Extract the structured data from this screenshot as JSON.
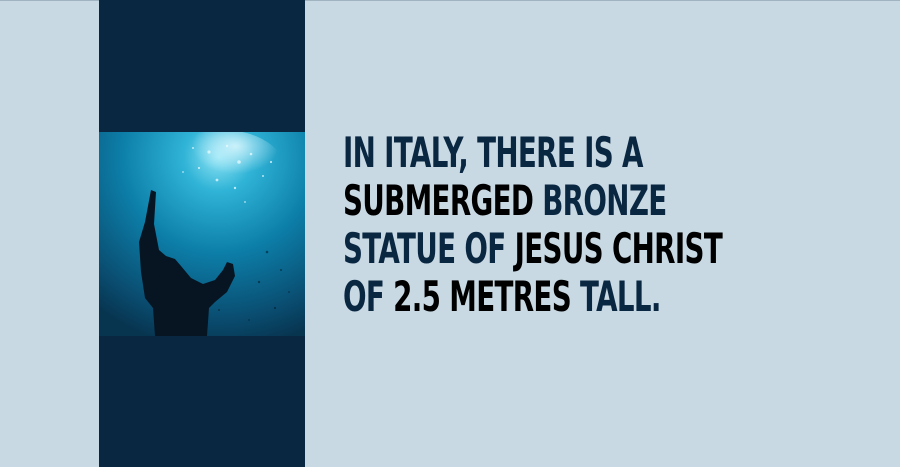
{
  "colors": {
    "background": "#c8d9e4",
    "band": "#0a2742",
    "highlight_text": "#0a2742",
    "emphasis_text": "#000000"
  },
  "photo": {
    "subject": "underwater-statue-image"
  },
  "fact": {
    "lines": [
      [
        {
          "text": "IN ITALY, THERE IS A",
          "style": "highlight"
        }
      ],
      [
        {
          "text": "SUBMERGED ",
          "style": "emphasis"
        },
        {
          "text": "BRONZE",
          "style": "highlight"
        }
      ],
      [
        {
          "text": "STATUE OF ",
          "style": "highlight"
        },
        {
          "text": "JESUS CHRIST",
          "style": "emphasis"
        }
      ],
      [
        {
          "text": "OF ",
          "style": "highlight"
        },
        {
          "text": "2.5 METRES ",
          "style": "emphasis"
        },
        {
          "text": "TALL.",
          "style": "highlight"
        }
      ]
    ]
  }
}
